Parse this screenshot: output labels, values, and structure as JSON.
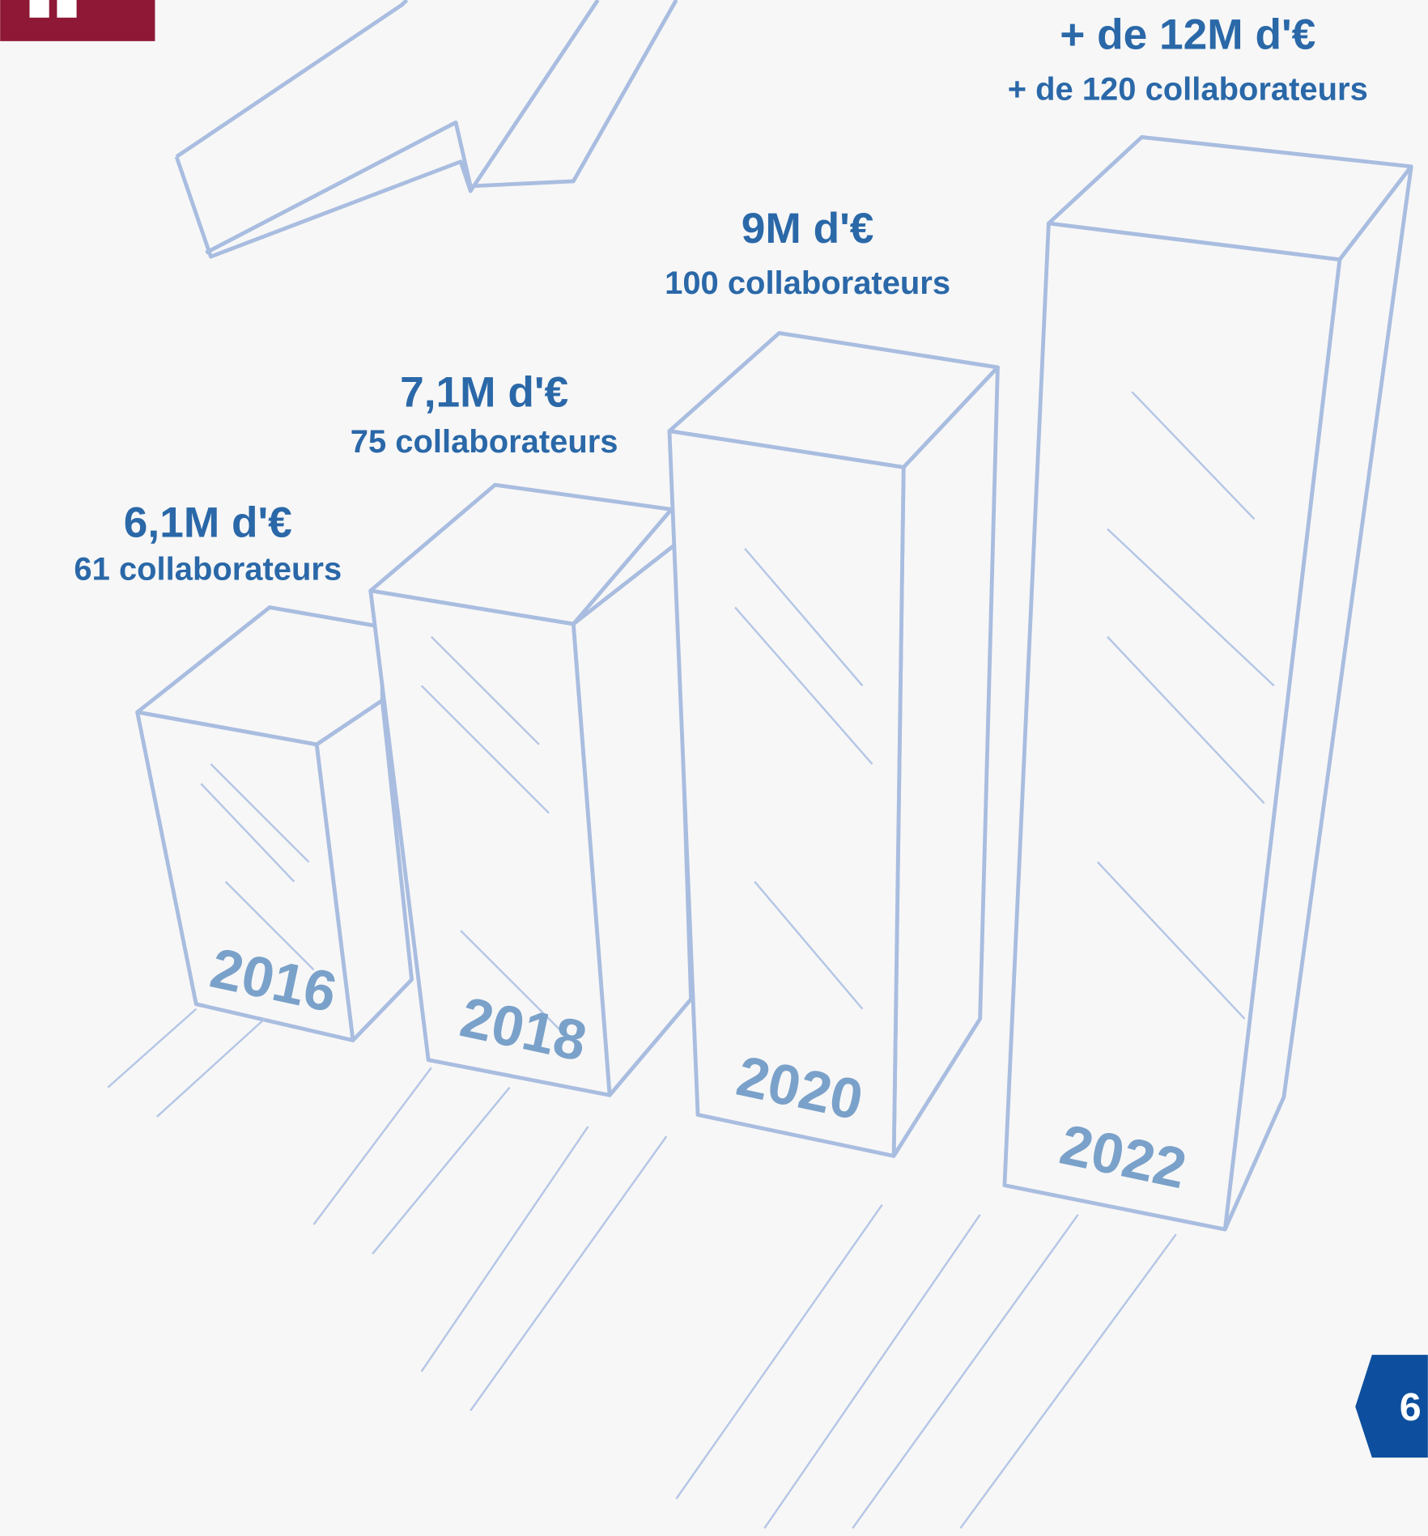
{
  "items": [
    {
      "revenue": "6,1M d'€",
      "staff": "61 collaborateurs",
      "year": "2016"
    },
    {
      "revenue": "7,1M d'€",
      "staff": "75 collaborateurs",
      "year": "2018"
    },
    {
      "revenue": "9M d'€",
      "staff": "100 collaborateurs",
      "year": "2020"
    },
    {
      "revenue": "+ de 12M d'€",
      "staff": "+ de 120 collaborateurs",
      "year": "2022"
    }
  ],
  "page_number": "6"
}
